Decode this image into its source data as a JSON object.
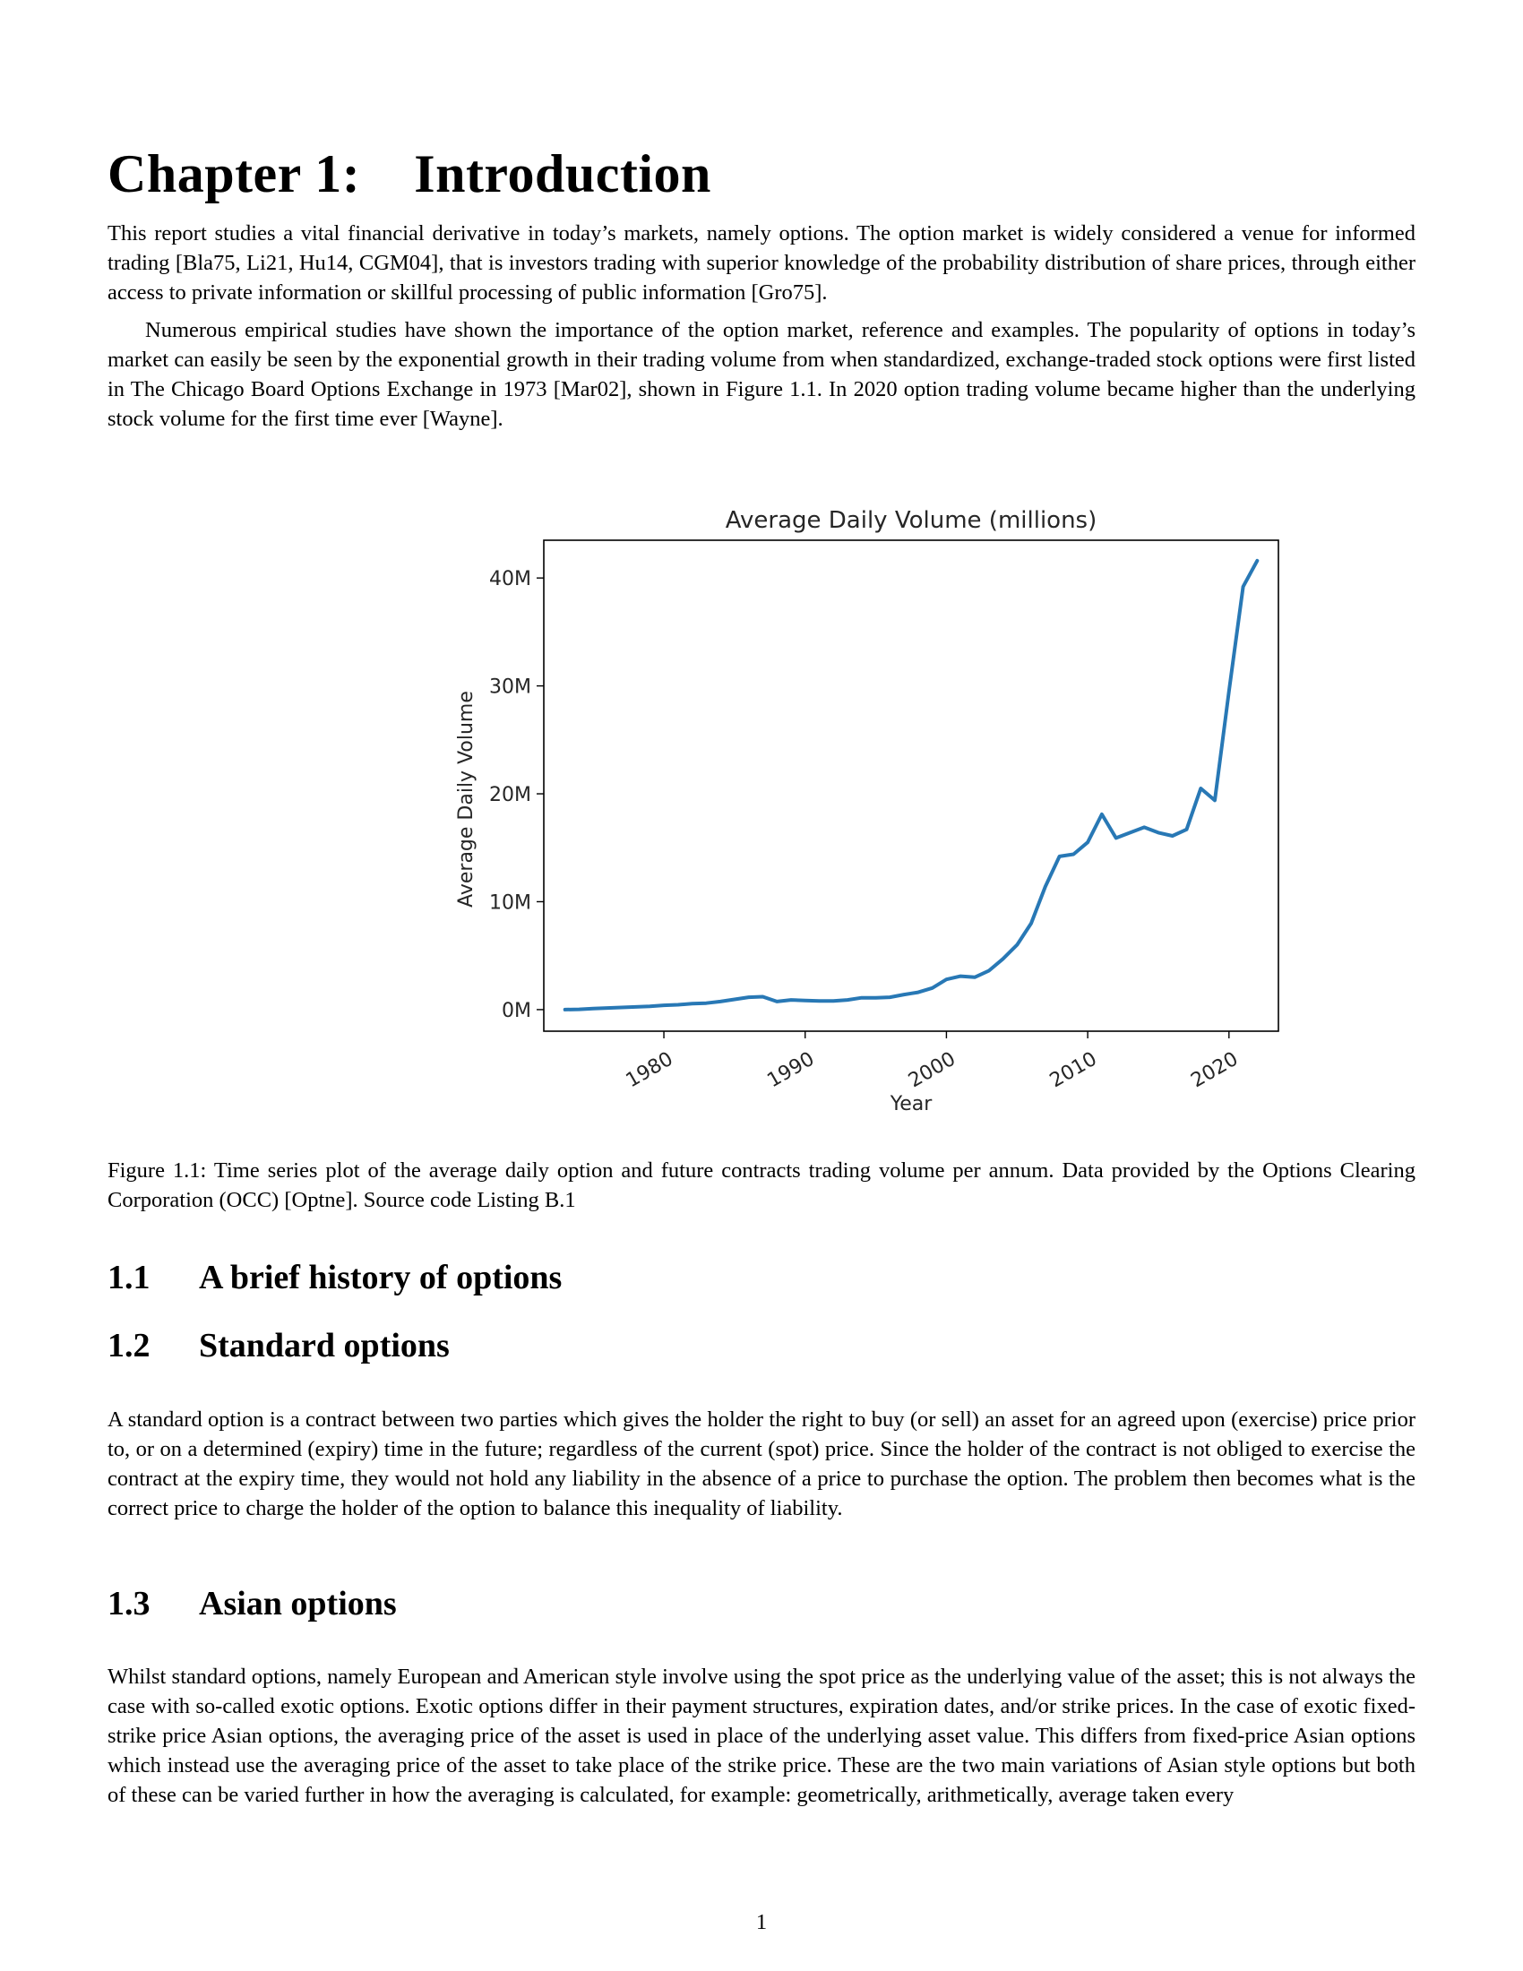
{
  "chapter": {
    "number_label": "Chapter 1:",
    "title": "Introduction"
  },
  "paragraphs": {
    "intro_1": "This report studies a vital financial derivative in today’s markets, namely options. The option market is widely considered a venue for informed trading [Bla75, Li21, Hu14, CGM04], that is investors trading with superior knowledge of the probability distribution of share prices, through either access to private information or skillful processing of public information [Gro75].",
    "intro_2": "Numerous empirical studies have shown the importance of the option market, reference and examples. The popularity of options in today’s market can easily be seen by the exponential growth in their trading volume from when standardized, exchange-traded stock options were first listed in The Chicago Board Options Exchange in 1973 [Mar02], shown in Figure 1.1. In 2020 option trading volume became higher than the underlying stock volume for the first time ever [Wayne].",
    "standard_options": "A standard option is a contract between two parties which gives the holder the right to buy (or sell) an asset for an agreed upon (exercise) price prior to, or on a determined (expiry) time in the future; regardless of the current (spot) price. Since the holder of the contract is not obliged to exercise the contract at the expiry time, they would not hold any liability in the absence of a price to purchase the option. The problem then becomes what is the correct price to charge the holder of the option to balance this inequality of liability.",
    "asian_options": "Whilst standard options, namely European and American style involve using the spot price as the underlying value of the asset; this is not always the case with so-called exotic options. Exotic options differ in their payment structures, expiration dates, and/or strike prices. In the case of exotic fixed-strike price Asian options, the averaging price of the asset is used in place of the underlying asset value. This differs from fixed-price Asian options which instead use the averaging price of the asset to take place of the strike price. These are the two main variations of Asian style options but both of these can be varied further in how the averaging is calculated, for example: geometrically, arithmetically, average taken every"
  },
  "figure": {
    "caption": "Figure 1.1: Time series plot of the average daily option and future contracts trading volume per annum. Data provided by the Options Clearing Corporation (OCC) [Optne]. Source code Listing B.1"
  },
  "sections": [
    {
      "number": "1.1",
      "title": "A brief history of options"
    },
    {
      "number": "1.2",
      "title": "Standard options"
    },
    {
      "number": "1.3",
      "title": "Asian options"
    }
  ],
  "page_number": "1",
  "chart_data": {
    "type": "line",
    "title": "Average Daily Volume (millions)",
    "xlabel": "Year",
    "ylabel": "Average Daily Volume",
    "xlim": [
      1971.5,
      2023.5
    ],
    "ylim": [
      -2,
      43.5
    ],
    "xticks": [
      1980,
      1990,
      2000,
      2010,
      2020
    ],
    "xtick_labels": [
      "1980",
      "1990",
      "2000",
      "2010",
      "2020"
    ],
    "yticks": [
      0,
      10,
      20,
      30,
      40
    ],
    "ytick_labels": [
      "0M",
      "10M",
      "20M",
      "30M",
      "40M"
    ],
    "grid": false,
    "legend": "none",
    "line_color": "#2878b5",
    "x": [
      1973,
      1974,
      1975,
      1976,
      1977,
      1978,
      1979,
      1980,
      1981,
      1982,
      1983,
      1984,
      1985,
      1986,
      1987,
      1988,
      1989,
      1990,
      1991,
      1992,
      1993,
      1994,
      1995,
      1996,
      1997,
      1998,
      1999,
      2000,
      2001,
      2002,
      2003,
      2004,
      2005,
      2006,
      2007,
      2008,
      2009,
      2010,
      2011,
      2012,
      2013,
      2014,
      2015,
      2016,
      2017,
      2018,
      2019,
      2020,
      2021,
      2022
    ],
    "y": [
      0.0,
      0.03,
      0.1,
      0.15,
      0.2,
      0.25,
      0.3,
      0.4,
      0.45,
      0.55,
      0.6,
      0.75,
      0.95,
      1.15,
      1.2,
      0.75,
      0.9,
      0.85,
      0.8,
      0.8,
      0.9,
      1.1,
      1.1,
      1.15,
      1.4,
      1.6,
      2.0,
      2.8,
      3.1,
      3.0,
      3.6,
      4.7,
      6.0,
      8.0,
      11.4,
      14.2,
      14.4,
      15.5,
      18.1,
      15.9,
      16.4,
      16.9,
      16.4,
      16.1,
      16.7,
      20.5,
      19.4,
      29.5,
      39.2,
      41.6
    ]
  }
}
